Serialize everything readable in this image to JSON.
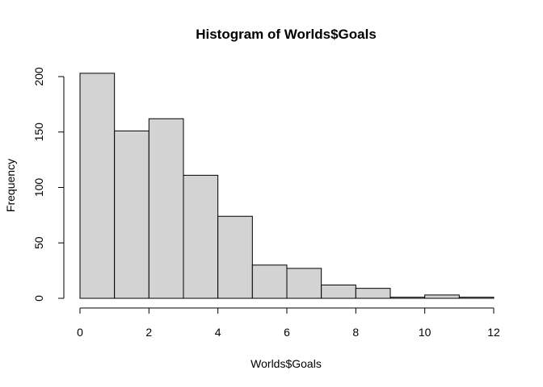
{
  "chart_data": {
    "type": "bar",
    "title": "Histogram of Worlds$Goals",
    "xlabel": "Worlds$Goals",
    "ylabel": "Frequency",
    "bins": [
      {
        "start": 0,
        "end": 1,
        "count": 203
      },
      {
        "start": 1,
        "end": 2,
        "count": 151
      },
      {
        "start": 2,
        "end": 3,
        "count": 162
      },
      {
        "start": 3,
        "end": 4,
        "count": 111
      },
      {
        "start": 4,
        "end": 5,
        "count": 74
      },
      {
        "start": 5,
        "end": 6,
        "count": 30
      },
      {
        "start": 6,
        "end": 7,
        "count": 27
      },
      {
        "start": 7,
        "end": 8,
        "count": 12
      },
      {
        "start": 8,
        "end": 9,
        "count": 9
      },
      {
        "start": 9,
        "end": 10,
        "count": 1
      },
      {
        "start": 10,
        "end": 11,
        "count": 3
      },
      {
        "start": 11,
        "end": 12,
        "count": 1
      }
    ],
    "xlim": [
      0,
      12
    ],
    "ylim": [
      0,
      203
    ],
    "x_ticks": [
      "0",
      "2",
      "4",
      "6",
      "8",
      "10",
      "12"
    ],
    "y_ticks": [
      "0",
      "50",
      "100",
      "150",
      "200"
    ],
    "bar_fill": "#d3d3d3",
    "bar_stroke": "#000000"
  }
}
